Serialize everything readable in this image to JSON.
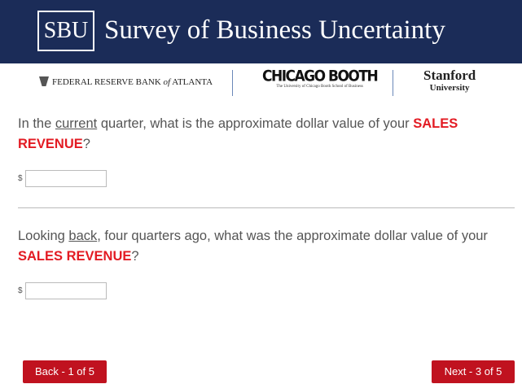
{
  "header": {
    "logo": "SBU",
    "title": "Survey of Business Uncertainty"
  },
  "partners": [
    {
      "parts": [
        {
          "text": "FEDERAL RESERVE BANK "
        },
        {
          "text": "of",
          "style": "italic"
        },
        {
          "text": " ATLANTA"
        }
      ]
    },
    {
      "name": "CHICAGO BOOTH",
      "subtitle": "The University of Chicago Booth School of Business"
    },
    {
      "name": "Stanford",
      "subtitle": "University"
    }
  ],
  "questions": [
    {
      "parts": [
        {
          "text": "In the "
        },
        {
          "text": "current",
          "style": "underline"
        },
        {
          "text": " quarter, what is the approximate dollar value of your "
        },
        {
          "text": "SALES REVENUE",
          "style": "emphasis"
        },
        {
          "text": "?"
        }
      ],
      "currency": "$"
    },
    {
      "parts": [
        {
          "text": "Looking "
        },
        {
          "text": "back",
          "style": "underline"
        },
        {
          "text": ", four quarters ago, what was the approximate dollar value of your "
        },
        {
          "text": "SALES REVENUE",
          "style": "emphasis"
        },
        {
          "text": "?"
        }
      ],
      "currency": "$"
    }
  ],
  "buttons": {
    "back": "Back - 1 of 5",
    "next": "Next - 3 of 5"
  }
}
